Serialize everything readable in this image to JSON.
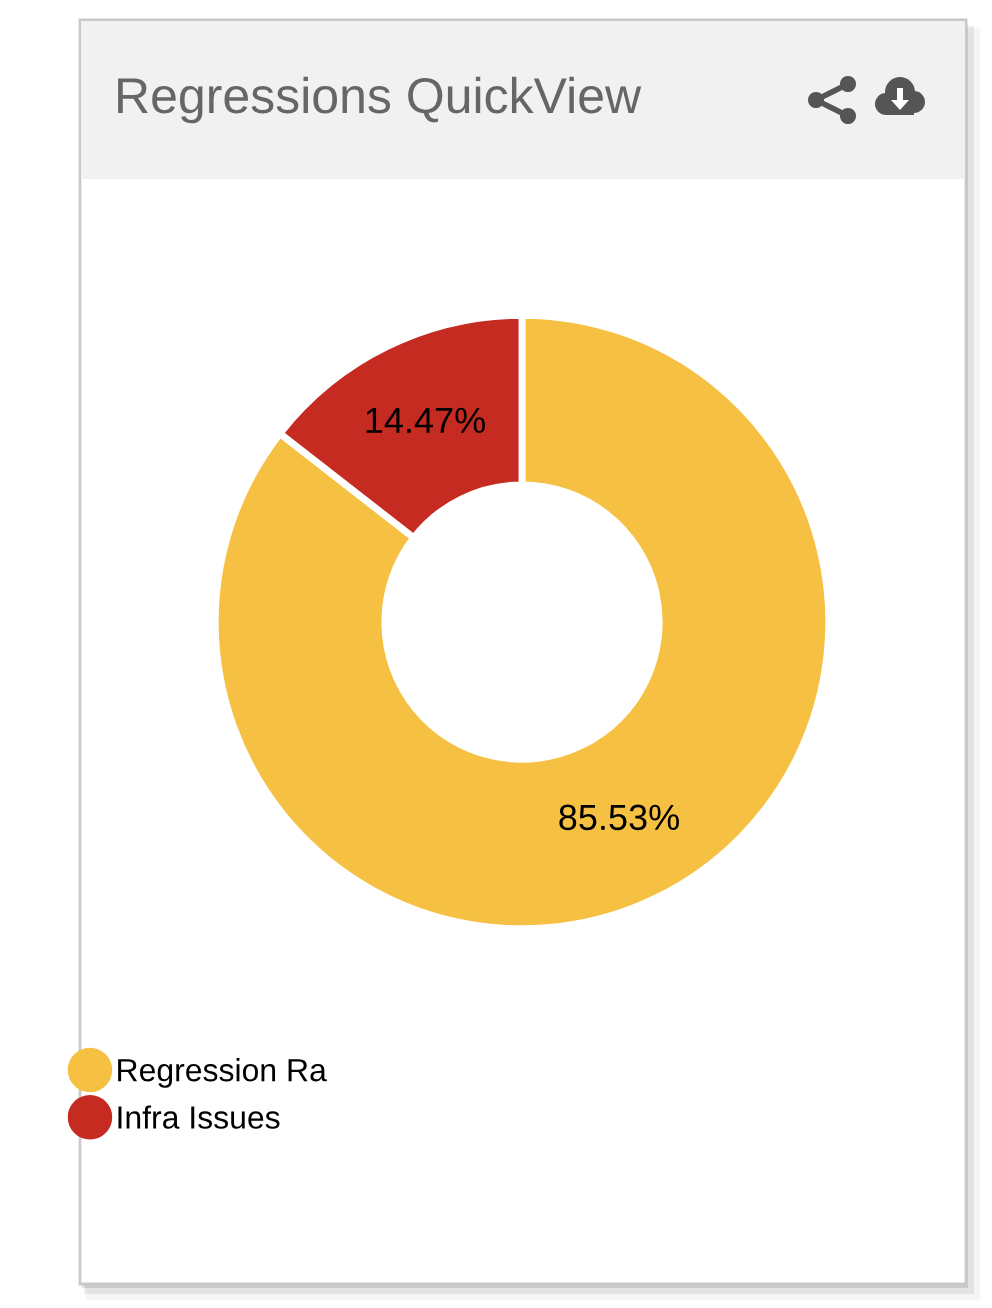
{
  "chart_data": {
    "type": "donut",
    "title": "Regressions QuickView",
    "categories": [
      "Regression Ra",
      "Infra Issues"
    ],
    "values": [
      85.53,
      14.47
    ],
    "colors": [
      "#f6c043",
      "#c62b21"
    ],
    "value_labels": [
      "85.53%",
      "14.47%"
    ],
    "legend": "bottom left"
  }
}
